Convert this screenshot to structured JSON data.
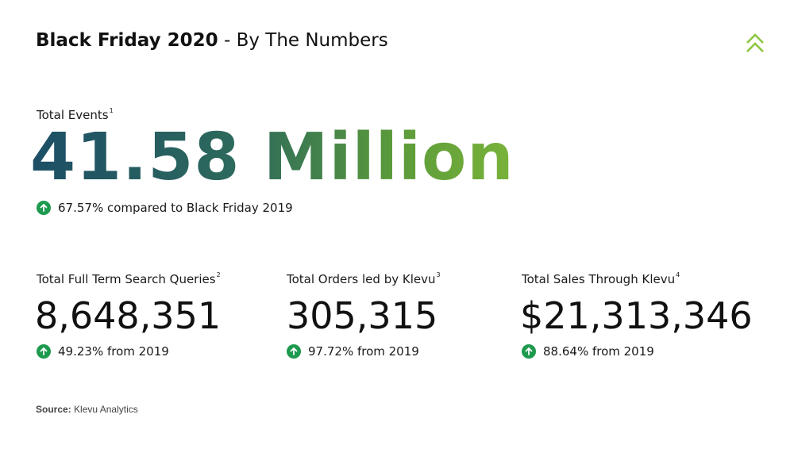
{
  "header": {
    "title_bold": "Black Friday 2020",
    "title_rest": "- By The Numbers"
  },
  "hero": {
    "label": "Total Events",
    "footnote": "1",
    "value": "41.58 Million",
    "change": "67.57% compared to Black Friday 2019"
  },
  "stats": [
    {
      "label": "Total Full Term Search Queries",
      "footnote": "2",
      "value": "8,648,351",
      "change": "49.23% from 2019"
    },
    {
      "label": "Total Orders led by Klevu",
      "footnote": "3",
      "value": "305,315",
      "change": "97.72% from 2019"
    },
    {
      "label": "Total Sales Through Klevu",
      "footnote": "4",
      "value": "$21,313,346",
      "change": "88.64% from 2019"
    }
  ],
  "source": {
    "prefix": "Source:",
    "text": "Klevu Analytics"
  },
  "colors": {
    "up_arrow": "#1e9a4e",
    "logo": "#8cc63f",
    "gradient_start": "#1d4e66",
    "gradient_end": "#7ab33a"
  },
  "icons": {
    "logo": "double-chevron-up-icon",
    "trend": "arrow-up-circle-icon"
  }
}
